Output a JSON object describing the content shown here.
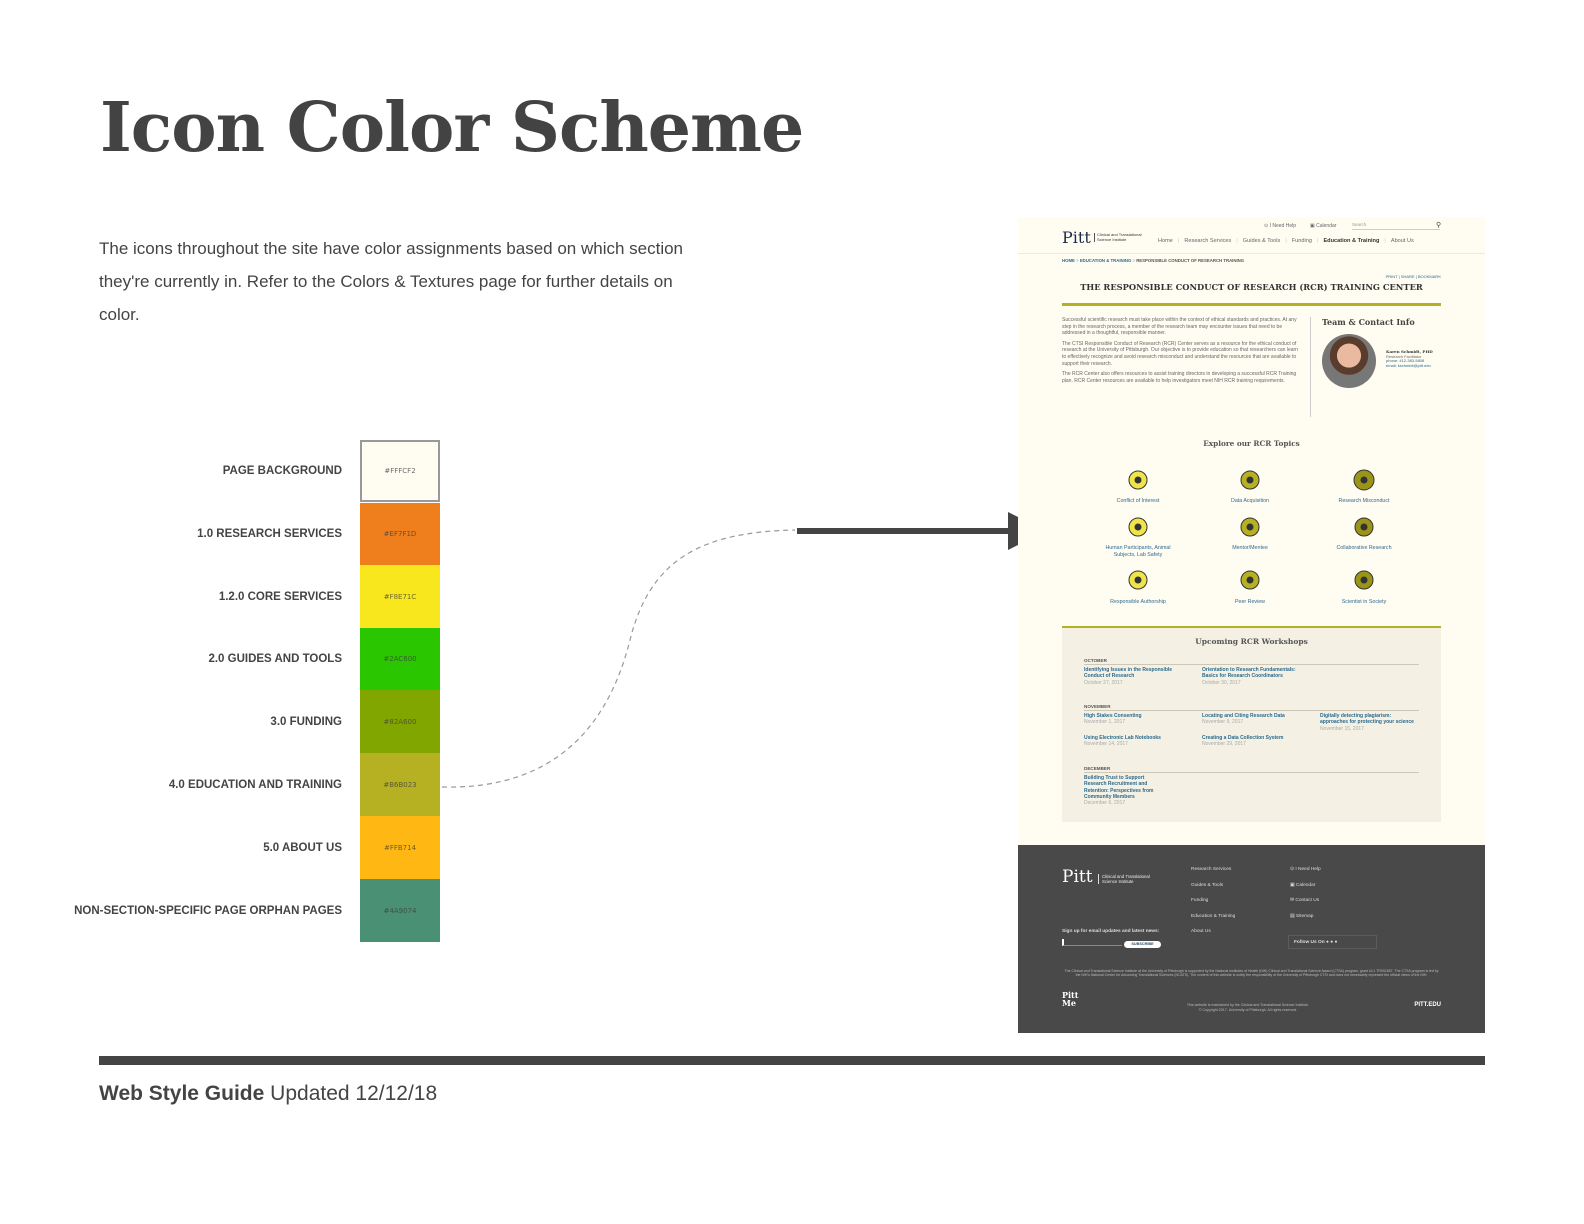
{
  "page": {
    "title": "Icon Color Scheme",
    "intro": "The icons throughout the site have color assignments based on which section they're currently in. Refer to the Colors & Textures page for further details on color.",
    "footer_bold": "Web Style Guide",
    "footer_updated": "Updated 12/12/18",
    "footer_bar_color": "#444444"
  },
  "swatches": [
    {
      "label": "PAGE BACKGROUND",
      "hex": "#FFFCF2",
      "color": "#FFFCF2"
    },
    {
      "label": "1.0 RESEARCH SERVICES",
      "hex": "#EF7F1D",
      "color": "#EF7F1D"
    },
    {
      "label": "1.2.0 CORE SERVICES",
      "hex": "#F8E71C",
      "color": "#F8E71C"
    },
    {
      "label": "2.0 GUIDES AND TOOLS",
      "hex": "#2AC600",
      "color": "#2AC600"
    },
    {
      "label": "3.0 FUNDING",
      "hex": "#82A600",
      "color": "#82A600"
    },
    {
      "label": "4.0 EDUCATION AND TRAINING",
      "hex": "#B6B023",
      "color": "#B6B023"
    },
    {
      "label": "5.0 ABOUT US",
      "hex": "#FFB714",
      "color": "#FFB714"
    },
    {
      "label": "NON-SECTION-SPECIFIC PAGE ORPHAN PAGES",
      "hex": "#4A9074",
      "color": "#4A9074"
    }
  ],
  "mock": {
    "utility": {
      "help": "I Need Help",
      "calendar": "Calendar",
      "search_placeholder": "Search"
    },
    "logo": {
      "pitt": "Pitt",
      "line1": "Clinical and Translational",
      "line2": "Science Institute"
    },
    "nav": [
      "Home",
      "Research Services",
      "Guides & Tools",
      "Funding",
      "Education & Training",
      "About Us"
    ],
    "breadcrumb": [
      "HOME",
      "EDUCATION & TRAINING",
      "RESPONSIBLE CONDUCT OF RESEARCH TRAINING"
    ],
    "actions": [
      "PRINT",
      "SHARE",
      "BOOKMARK"
    ],
    "heading": "THE RESPONSIBLE CONDUCT OF RESEARCH (RCR) TRAINING CENTER",
    "paragraphs": [
      "Successful scientific research must take place within the context of ethical standards and practices. At any step in the research process, a member of the research team may encounter issues that need to be addressed in a thoughtful, responsible manner.",
      "The CTSI Responsible Conduct of Research (RCR) Center serves as a resource for the ethical conduct of research at the University of Pittsburgh. Our objective is to provide education so that researchers can learn to effectively recognize and avoid research misconduct and understand the resources that are available to support their research.",
      "The RCR Center also offers resources to assist training directors in developing a successful RCR Training plan. RCR Center resources are available to help investigators meet NIH RCR training requirements."
    ],
    "contact": {
      "heading": "Team & Contact Info",
      "name": "Karen Schmidt, PHD",
      "role": "Research Facilitator",
      "phone": "phone: 412-383-5808",
      "email": "email: kschmidt@pitt.edu"
    },
    "topics_heading": "Explore our RCR Topics",
    "topics": [
      "Conflict of Interest",
      "Data Acquisition",
      "Research Misconduct",
      "Human Participants, Animal Subjects, Lab Safety",
      "Mentor/Mentee",
      "Collaborative Research",
      "Responsible Authorship",
      "Peer Review",
      "Scientist in Society"
    ],
    "workshops_heading": "Upcoming RCR Workshops",
    "months": [
      {
        "name": "OCTOBER",
        "items": [
          {
            "title": "Identifying Issues in the Responsible Conduct of Research",
            "date": "October 27, 2017"
          },
          {
            "title": "Orientation to Research Fundamentals: Basics for Research Coordinators",
            "date": "October 30, 2017"
          }
        ]
      },
      {
        "name": "NOVEMBER",
        "items": [
          {
            "title": "High Stakes Consenting",
            "date": "November 1, 2017"
          },
          {
            "title": "Locating and Citing Research Data",
            "date": "November 9, 2017"
          },
          {
            "title": "Digitally detecting plagiarism: approaches for protecting your science",
            "date": "November 15, 2017"
          },
          {
            "title": "Using Electronic Lab Notebooks",
            "date": "November 14, 2017"
          },
          {
            "title": "Creating a Data Collection System",
            "date": "November 29, 2017"
          }
        ]
      },
      {
        "name": "DECEMBER",
        "items": [
          {
            "title": "Building Trust to Support Research Recruitment and Retention: Perspectives from Community Members",
            "date": "December 6, 2017"
          }
        ]
      }
    ],
    "footer": {
      "links": [
        "Research Services",
        "Guides & Tools",
        "Funding",
        "Education & Training",
        "About Us"
      ],
      "util": [
        "I Need Help",
        "Calendar",
        "Contact Us",
        "Sitemap"
      ],
      "signup": "Sign up for email updates and latest news:",
      "subscribe": "SUBSCRIBE",
      "follow": "Follow Us On",
      "disclaimer": "The Clinical and Translational Science Institute at the University of Pittsburgh is supported by the National Institutes of Health (NIH) Clinical and Translational Science Award (CTSA) program, grant UL1 TR001857. The CTSA program is led by the NIH's National Center for Advancing Translational Sciences (NCATS). The content of this website is solely the responsibility of the University of Pittsburgh CTSI and does not necessarily represent the official views of the NIH.",
      "maintained": "This website is maintained by the Clinical and Translational Science Institute.",
      "copyright": "© Copyright 2017, University of Pittsburgh. All rights reserved.",
      "pittme": "Pitt Me",
      "pittedu": "PITT.EDU"
    }
  }
}
